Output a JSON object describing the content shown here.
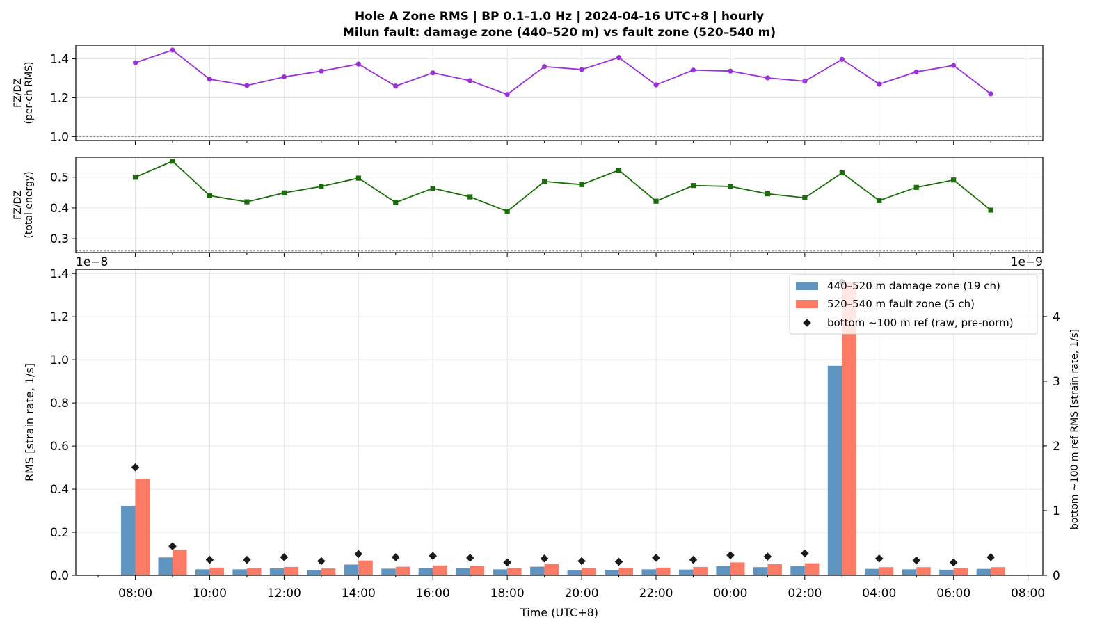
{
  "title_line1": "Hole A Zone RMS  |  BP 0.1–1.0 Hz  |  2024-04-16 UTC+8  |  hourly",
  "title_line2": "Milun fault: damage zone (440–520 m) vs fault zone (520–540 m)",
  "colors": {
    "ratio_rms": "#9b30d9",
    "ratio_energy": "#1a6e0a",
    "damage_zone": "#5f93c0",
    "fault_zone": "#fb7b64",
    "reference": "#1a1a1a"
  },
  "chart_data": [
    {
      "type": "line",
      "ylabel": [
        "FZ/DZ",
        "(per-ch RMS)"
      ],
      "ylim": [
        0.98,
        1.47
      ],
      "yticks": [
        1.0,
        1.2,
        1.4
      ],
      "ytick_labels": [
        "1.0",
        "1.2",
        "1.4"
      ],
      "reference_line": 1.0,
      "grid": true,
      "x_hours": [
        8,
        9,
        10,
        11,
        12,
        13,
        14,
        15,
        16,
        17,
        18,
        19,
        20,
        21,
        22,
        23,
        24,
        25,
        26,
        27,
        28,
        29,
        30,
        31
      ],
      "values": [
        1.38,
        1.445,
        1.295,
        1.263,
        1.307,
        1.337,
        1.373,
        1.26,
        1.328,
        1.288,
        1.217,
        1.36,
        1.345,
        1.407,
        1.266,
        1.342,
        1.337,
        1.302,
        1.285,
        1.397,
        1.27,
        1.333,
        1.366,
        1.22
      ],
      "marker": "circle"
    },
    {
      "type": "line",
      "ylabel": [
        "FZ/DZ",
        "(total energy)"
      ],
      "ylim": [
        0.255,
        0.565
      ],
      "yticks": [
        0.3,
        0.4,
        0.5
      ],
      "ytick_labels": [
        "0.3",
        "0.4",
        "0.5"
      ],
      "reference_line": 0.26,
      "grid": true,
      "x_hours": [
        8,
        9,
        10,
        11,
        12,
        13,
        14,
        15,
        16,
        17,
        18,
        19,
        20,
        21,
        22,
        23,
        24,
        25,
        26,
        27,
        28,
        29,
        30,
        31
      ],
      "values": [
        0.5,
        0.552,
        0.44,
        0.42,
        0.449,
        0.47,
        0.497,
        0.418,
        0.464,
        0.436,
        0.389,
        0.486,
        0.476,
        0.523,
        0.422,
        0.473,
        0.47,
        0.446,
        0.433,
        0.514,
        0.424,
        0.467,
        0.491,
        0.393
      ],
      "marker": "square"
    },
    {
      "type": "bar",
      "xlabel": "Time (UTC+8)",
      "ylabel": "RMS  [strain rate, 1/s]",
      "y_scale_label": "1e−8",
      "ylim": [
        0,
        1.42
      ],
      "yticks": [
        0.0,
        0.2,
        0.4,
        0.6,
        0.8,
        1.0,
        1.2,
        1.4
      ],
      "ytick_labels": [
        "0.0",
        "0.2",
        "0.4",
        "0.6",
        "0.8",
        "1.0",
        "1.2",
        "1.4"
      ],
      "y2label": "bottom ~100 m ref RMS  [strain rate, 1/s]",
      "y2_scale_label": "1e−9",
      "y2lim": [
        0,
        4.73
      ],
      "y2ticks": [
        0,
        1,
        2,
        3,
        4
      ],
      "y2tick_labels": [
        "0",
        "1",
        "2",
        "3",
        "4"
      ],
      "xlim_hours": [
        6.4,
        32.4
      ],
      "xticks_hours": [
        8,
        10,
        12,
        14,
        16,
        18,
        20,
        22,
        24,
        26,
        28,
        30,
        32
      ],
      "xtick_labels": [
        "08:00",
        "10:00",
        "12:00",
        "14:00",
        "16:00",
        "18:00",
        "20:00",
        "22:00",
        "00:00",
        "02:00",
        "04:00",
        "06:00",
        "08:00"
      ],
      "x_hours": [
        8,
        9,
        10,
        11,
        12,
        13,
        14,
        15,
        16,
        17,
        18,
        19,
        20,
        21,
        22,
        23,
        24,
        25,
        26,
        27,
        28,
        29,
        30,
        31
      ],
      "grid": true,
      "legend_position": "top-right",
      "legend": [
        "440–520 m  damage zone (19 ch)",
        "520–540 m  fault zone (5 ch)",
        "bottom ~100 m ref (raw, pre-norm)"
      ],
      "series": [
        {
          "name": "440–520 m  damage zone (19 ch)",
          "axis": "left",
          "values": [
            0.323,
            0.083,
            0.028,
            0.028,
            0.032,
            0.024,
            0.05,
            0.031,
            0.034,
            0.034,
            0.028,
            0.04,
            0.024,
            0.025,
            0.028,
            0.027,
            0.043,
            0.038,
            0.043,
            0.972,
            0.03,
            0.028,
            0.026,
            0.03
          ]
        },
        {
          "name": "520–540 m  fault zone (5 ch)",
          "axis": "left",
          "values": [
            0.448,
            0.118,
            0.036,
            0.034,
            0.039,
            0.032,
            0.069,
            0.04,
            0.046,
            0.045,
            0.034,
            0.053,
            0.034,
            0.035,
            0.036,
            0.039,
            0.06,
            0.052,
            0.056,
            1.362,
            0.038,
            0.038,
            0.034,
            0.038
          ]
        },
        {
          "name": "bottom ~100 m ref (raw, pre-norm)",
          "axis": "right",
          "values": [
            1.67,
            0.45,
            0.24,
            0.24,
            0.28,
            0.22,
            0.33,
            0.28,
            0.3,
            0.27,
            0.2,
            0.26,
            0.22,
            0.21,
            0.27,
            0.24,
            0.31,
            0.29,
            0.34,
            4.53,
            0.26,
            0.23,
            0.2,
            0.28
          ]
        }
      ]
    }
  ]
}
